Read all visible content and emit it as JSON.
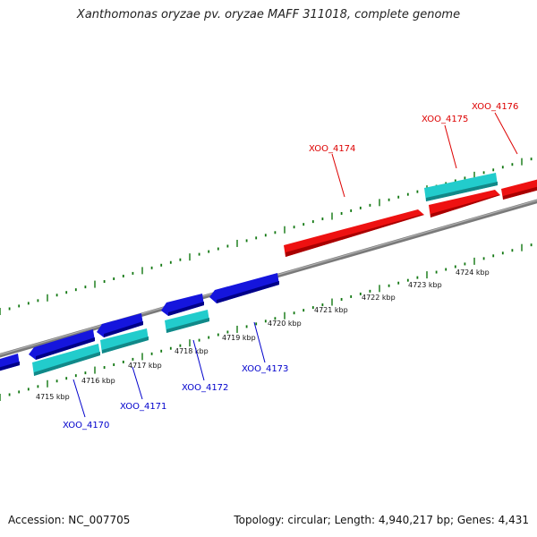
{
  "title": "Xanthomonas oryzae pv. oryzae MAFF 311018, complete genome",
  "footer": {
    "accession": "Accession: NC_007705",
    "summary": "Topology: circular; Length: 4,940,217 bp; Genes: 4,431"
  },
  "colors": {
    "gene_forward_red": "#ee1111",
    "gene_reverse_blue": "#1515dd",
    "gene_cyan": "#22cccc",
    "backbone": "#888888",
    "ticks": "#117711",
    "label_red": "#dd0000",
    "label_blue": "#0000cc"
  },
  "ruler": {
    "unit": "kbp",
    "tick_labels": [
      "4715 kbp",
      "4716 kbp",
      "4717 kbp",
      "4718 kbp",
      "4719 kbp",
      "4720 kbp",
      "4721 kbp",
      "4722 kbp",
      "4723 kbp",
      "4724 kbp"
    ]
  },
  "genes": [
    {
      "id": "XOO_4170",
      "strand": "reverse",
      "color": "blue"
    },
    {
      "id": "XOO_4171",
      "strand": "reverse",
      "color": "blue"
    },
    {
      "id": "XOO_4172",
      "strand": "reverse",
      "color": "blue"
    },
    {
      "id": "XOO_4173",
      "strand": "reverse",
      "color": "blue"
    },
    {
      "id": "XOO_4174",
      "strand": "forward",
      "color": "red"
    },
    {
      "id": "XOO_4175",
      "strand": "forward",
      "color": "red"
    },
    {
      "id": "XOO_4176",
      "strand": "forward",
      "color": "red"
    }
  ]
}
